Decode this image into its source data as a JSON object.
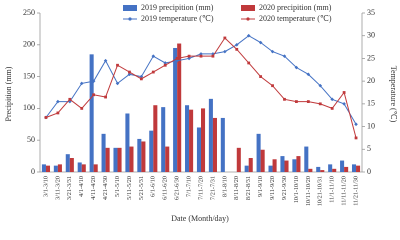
{
  "chart_data": {
    "type": "combo",
    "xlabel": "Date (Month/day)",
    "ylabel": "Precipition (mm)",
    "y2label": "Temperature (℃)",
    "categories": [
      "3/1-3/10",
      "3/11-3/20",
      "3/21-3/31",
      "4/1-4/10",
      "4/11-4/20",
      "4/21-4/30",
      "5/1-5/10",
      "5/11-5/20",
      "5/21-5/31",
      "6/1-6/10",
      "6/11-6/20",
      "6/21-6/30",
      "7/1-7/10",
      "7/11-7/20",
      "7/21-7/31",
      "8/1-8/10",
      "8/11-8/20",
      "8/21-8/31",
      "9/1-9/10",
      "9/11-9/20",
      "9/21-9/30",
      "10/1-10/10",
      "10/11-10/20",
      "10/21-10/31",
      "11/1-11/10",
      "11/11-11/20",
      "11/21-11/30"
    ],
    "ylim": [
      0,
      250
    ],
    "yticks": [
      0,
      50,
      100,
      150,
      200,
      250
    ],
    "y2lim": [
      0,
      35
    ],
    "y2ticks": [
      0,
      5,
      10,
      15,
      20,
      25,
      30,
      35
    ],
    "legend": "upper center",
    "series": [
      {
        "name": "2019 precipition (mm)",
        "type": "bar",
        "color": "#4472c4",
        "values": [
          12,
          10,
          28,
          15,
          185,
          60,
          38,
          92,
          52,
          65,
          102,
          195,
          105,
          70,
          115,
          85,
          0,
          10,
          60,
          10,
          25,
          20,
          40,
          8,
          12,
          18,
          12
        ]
      },
      {
        "name": "2020 precipition (mm)",
        "type": "bar",
        "color": "#c0393b",
        "values": [
          10,
          12,
          22,
          12,
          12,
          38,
          38,
          40,
          48,
          105,
          40,
          202,
          98,
          100,
          85,
          0,
          38,
          22,
          35,
          20,
          18,
          25,
          5,
          3,
          5,
          8,
          10
        ]
      },
      {
        "name": "2019 temperature (℃)",
        "type": "line",
        "axis": "y2",
        "color": "#4472c4",
        "values": [
          12,
          15.5,
          15.5,
          19.5,
          20,
          24.5,
          19.5,
          21.5,
          21,
          25.5,
          24,
          24.5,
          25,
          26,
          26,
          26.5,
          28,
          30,
          28.5,
          26.5,
          25.5,
          23,
          21.5,
          19,
          16,
          15,
          10.5
        ]
      },
      {
        "name": "2020 temperature (℃)",
        "type": "line",
        "axis": "y2",
        "color": "#c0393b",
        "values": [
          12,
          13,
          16,
          14,
          17,
          16.5,
          23.5,
          22,
          20.5,
          22,
          23.5,
          25,
          25.5,
          25.5,
          25.5,
          29.5,
          27,
          24,
          21,
          19,
          16,
          15.5,
          15.5,
          15,
          14,
          17.5,
          7.5
        ]
      }
    ]
  }
}
